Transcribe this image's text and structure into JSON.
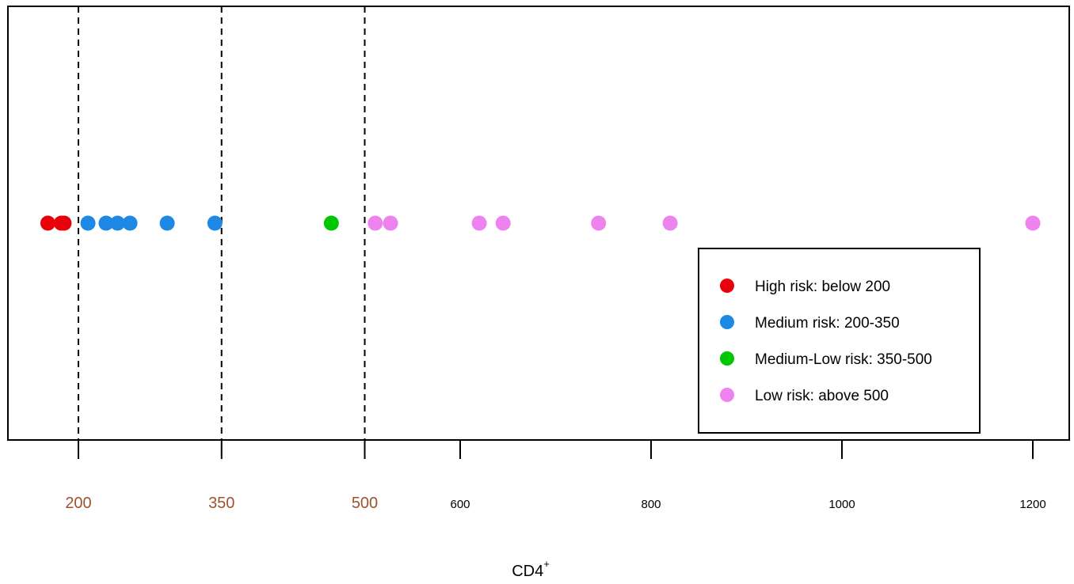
{
  "chart_data": {
    "type": "scatter",
    "title": "",
    "xlabel": "CD4",
    "xlabel_superscript": "+",
    "ylabel": "",
    "xlim": [
      163,
      1220
    ],
    "grid": false,
    "legend_position": "bottom-right",
    "tick_values": [
      200,
      350,
      500,
      600,
      800,
      1000,
      1200
    ],
    "tick_labels": [
      "200",
      "350",
      "500",
      "600",
      "800",
      "1000",
      "1200"
    ],
    "highlight_ticks": [
      200,
      350,
      500
    ],
    "highlight_tick_color": "#a0522d",
    "threshold_lines": [
      200,
      350,
      500
    ],
    "series": [
      {
        "name": "High risk: below 200",
        "color": "#e8000b",
        "x": [
          168,
          182,
          185
        ]
      },
      {
        "name": "Medium risk: 200-350",
        "color": "#1e88e5",
        "x": [
          210,
          229,
          241,
          254,
          293,
          343
        ]
      },
      {
        "name": "Medium-Low risk: 350-500",
        "color": "#00c800",
        "x": [
          465
        ]
      },
      {
        "name": "Low risk: above 500",
        "color": "#ee82ee",
        "x": [
          511,
          527,
          620,
          645,
          745,
          820,
          1200
        ]
      }
    ]
  }
}
